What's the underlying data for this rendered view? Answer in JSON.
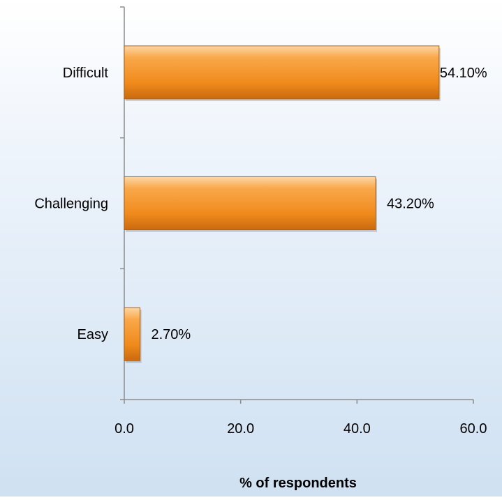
{
  "chart_data": {
    "type": "bar",
    "orientation": "horizontal",
    "title": "",
    "xlabel": "% of respondents",
    "ylabel": "",
    "categories": [
      "Difficult",
      "Challenging",
      "Easy"
    ],
    "values": [
      54.1,
      43.2,
      2.7
    ],
    "data_labels": [
      "54.10%",
      "43.20%",
      "2.70%"
    ],
    "xlim": [
      0,
      60
    ],
    "x_ticks": [
      "0.0",
      "20.0",
      "40.0",
      "60.0"
    ],
    "grid": false,
    "legend": "none",
    "bar_color": "#f59a2e",
    "bar_color_dark": "#b85f0a"
  }
}
